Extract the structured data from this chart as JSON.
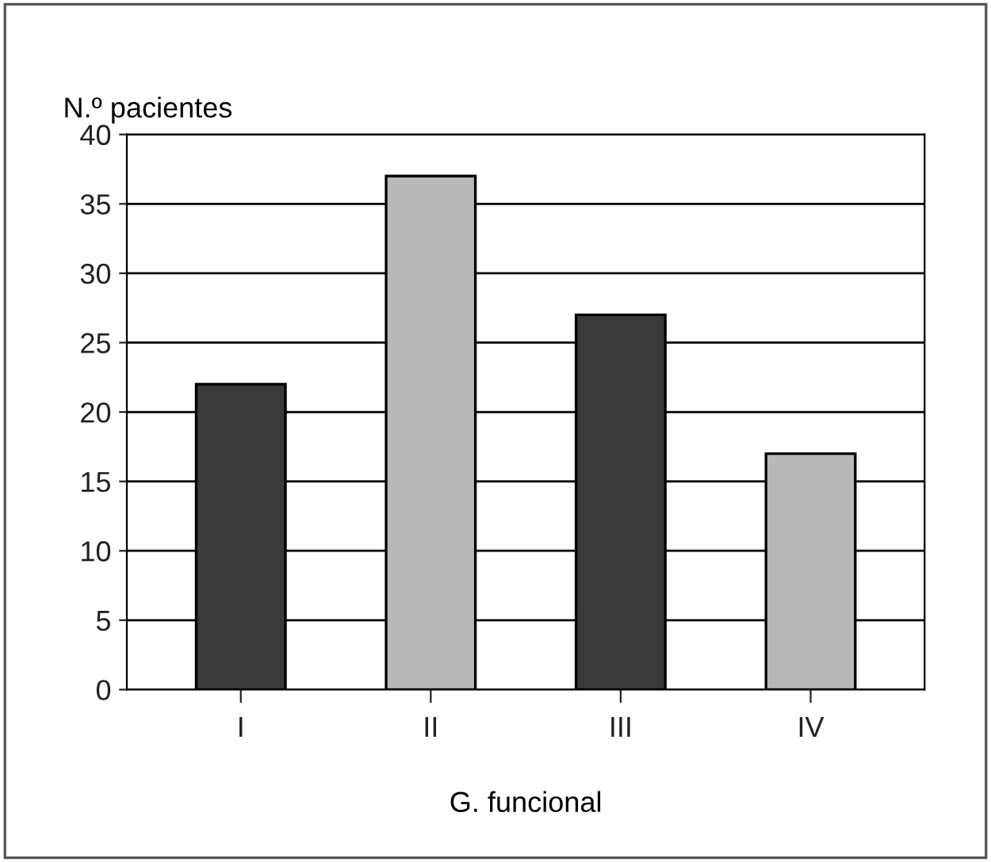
{
  "chart_data": {
    "type": "bar",
    "xlabel": "G. funcional",
    "ylabel": "N.º pacientes",
    "categories": [
      "I",
      "II",
      "III",
      "IV"
    ],
    "values": [
      22,
      37,
      27,
      17
    ],
    "colors": [
      "#3a3a3a",
      "#b8b8b8",
      "#3a3a3a",
      "#b8b8b8"
    ],
    "ylim": [
      0,
      40
    ],
    "yticks": [
      0,
      5,
      10,
      15,
      20,
      25,
      30,
      35,
      40
    ],
    "grid": "y",
    "legend": false
  }
}
